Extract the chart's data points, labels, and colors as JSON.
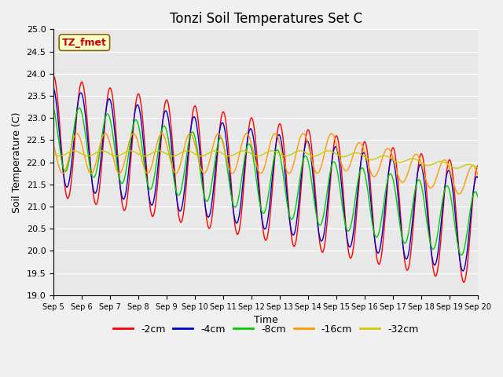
{
  "title": "Tonzi Soil Temperatures Set C",
  "xlabel": "Time",
  "ylabel": "Soil Temperature (C)",
  "ylim": [
    19.0,
    25.0
  ],
  "yticks": [
    19.0,
    19.5,
    20.0,
    20.5,
    21.0,
    21.5,
    22.0,
    22.5,
    23.0,
    23.5,
    24.0,
    24.5,
    25.0
  ],
  "bg_color": "#e8e8e8",
  "fig_color": "#f0f0f0",
  "annotation_text": "TZ_fmet",
  "annotation_bg": "#ffffcc",
  "annotation_border": "#cc0000",
  "series_colors": [
    "#ff0000",
    "#0000cc",
    "#00cc00",
    "#ff9900",
    "#cccc00"
  ],
  "series_labels": [
    "-2cm",
    "-4cm",
    "-8cm",
    "-16cm",
    "-32cm"
  ],
  "n_days": 15,
  "start_day": 5,
  "samples_per_day": 48
}
